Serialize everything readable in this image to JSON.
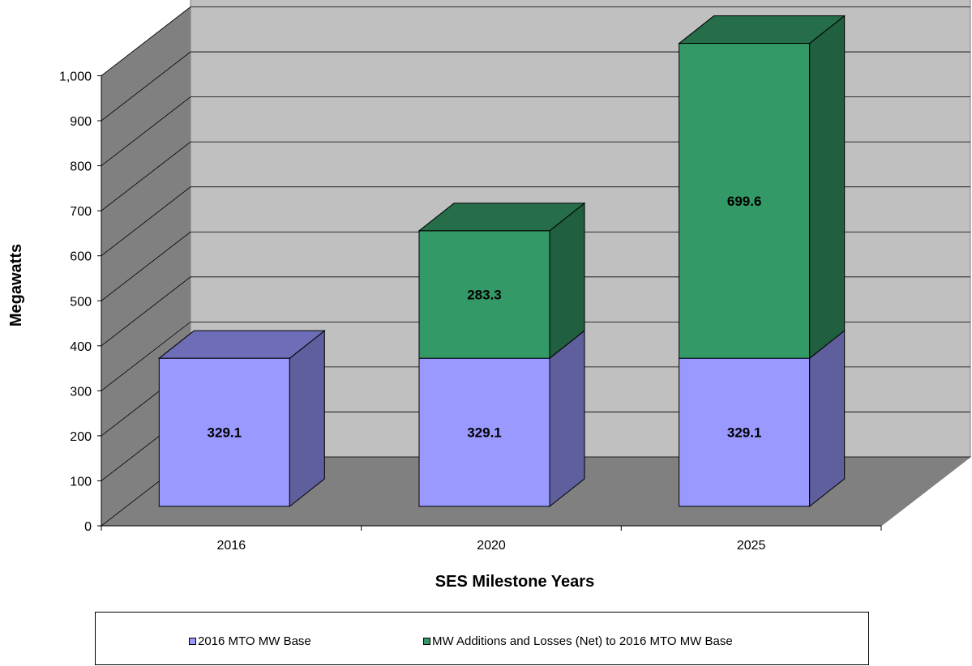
{
  "chart_data": {
    "type": "bar",
    "stacked": true,
    "three_d": true,
    "categories": [
      "2016",
      "2020",
      "2025"
    ],
    "series": [
      {
        "name": "2016 MTO MW Base",
        "values": [
          329.1,
          329.1,
          329.1
        ],
        "color": "#9999ff"
      },
      {
        "name": "MW Additions and Losses (Net) to 2016 MTO MW Base",
        "values": [
          null,
          283.3,
          699.6
        ],
        "color": "#339966"
      }
    ],
    "xlabel": "SES Milestone Years",
    "ylabel": "Megawatts",
    "ylim": [
      0,
      1000
    ],
    "yticks": [
      "0",
      "100",
      "200",
      "300",
      "400",
      "500",
      "600",
      "700",
      "800",
      "900",
      "1,000"
    ],
    "grid": true,
    "legend_position": "bottom"
  }
}
